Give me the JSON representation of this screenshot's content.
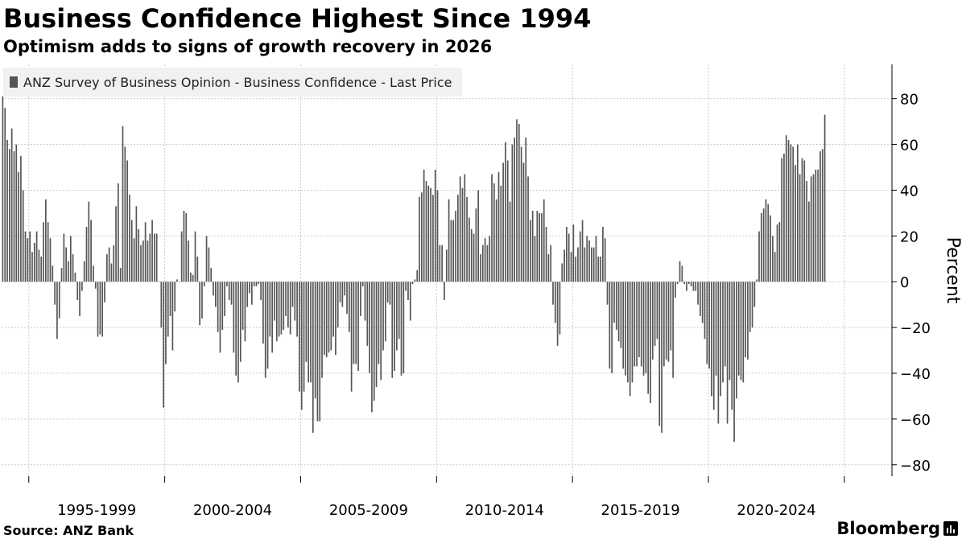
{
  "title": "Business Confidence Highest Since 1994",
  "subtitle": "Optimism adds to signs of growth recovery in 2026",
  "source": "Source: ANZ Bank",
  "brand": "Bloomberg",
  "colors": {
    "bar": "#555555",
    "grid": "#cccccc",
    "axis": "#000000",
    "legend_bg": "#f1f1f1"
  },
  "chart_data": {
    "type": "bar",
    "title": "Business Confidence Highest Since 1994",
    "series": [
      {
        "name": "ANZ Survey of Business Opinion - Business Confidence - Last Price",
        "x_start": 1994.0,
        "x_step": 0.0833,
        "values": [
          81,
          76,
          62,
          58,
          67,
          57,
          60,
          48,
          55,
          40,
          22,
          19,
          22,
          13,
          17,
          22,
          14,
          11,
          26,
          36,
          26,
          19,
          7,
          -10,
          -25,
          -16,
          6,
          21,
          15,
          9,
          20,
          12,
          4,
          -8,
          -15,
          -4,
          9,
          24,
          35,
          27,
          7,
          -3,
          -24,
          -23,
          -24,
          -9,
          12,
          15,
          8,
          16,
          33,
          43,
          6,
          68,
          59,
          53,
          38,
          27,
          19,
          33,
          23,
          16,
          18,
          26,
          18,
          21,
          27,
          21,
          21,
          0,
          -20,
          -55,
          -36,
          -24,
          -15,
          -30,
          -13,
          1,
          0,
          22,
          31,
          30,
          18,
          4,
          3,
          22,
          11,
          -19,
          -16,
          -2,
          20,
          15,
          6,
          -6,
          -11,
          -22,
          -31,
          -21,
          -15,
          -2,
          -8,
          -10,
          -31,
          -41,
          -44,
          -35,
          -21,
          -26,
          -11,
          -5,
          -10,
          -2,
          -2,
          -1,
          -8,
          -27,
          -42,
          -38,
          -24,
          -31,
          -17,
          -26,
          -24,
          -23,
          -21,
          -15,
          -20,
          -23,
          -11,
          -17,
          -24,
          -48,
          -56,
          -48,
          -35,
          -44,
          -44,
          -66,
          -51,
          -61,
          -61,
          -42,
          -32,
          -33,
          -31,
          -30,
          -24,
          -32,
          -20,
          -9,
          -11,
          -6,
          -14,
          -22,
          -48,
          -36,
          -36,
          -39,
          -15,
          -2,
          -17,
          -28,
          -40,
          -57,
          -52,
          -46,
          -36,
          -43,
          -30,
          -26,
          -9,
          -10,
          -42,
          -39,
          -30,
          -25,
          -41,
          -40,
          -4,
          -8,
          -17,
          -1,
          1,
          5,
          37,
          39,
          49,
          44,
          42,
          41,
          38,
          49,
          40,
          16,
          16,
          -8,
          14,
          36,
          27,
          27,
          31,
          38,
          46,
          41,
          47,
          37,
          28,
          23,
          21,
          32,
          40,
          12,
          16,
          19,
          16,
          20,
          47,
          43,
          36,
          48,
          42,
          52,
          61,
          53,
          35,
          60,
          63,
          71,
          69,
          59,
          52,
          63,
          46,
          27,
          31,
          20,
          31,
          30,
          30,
          36,
          24,
          12,
          16,
          -10,
          -18,
          -28,
          -23,
          8,
          14,
          24,
          21,
          13,
          25,
          11,
          15,
          22,
          27,
          15,
          20,
          18,
          15,
          15,
          20,
          11,
          11,
          24,
          19,
          -10,
          -38,
          -40,
          -18,
          -21,
          -26,
          -29,
          -38,
          -41,
          -44,
          -50,
          -44,
          -37,
          -37,
          -33,
          -37,
          -41,
          -40,
          -49,
          -53,
          -34,
          -28,
          -25,
          -63,
          -66,
          -37,
          -34,
          -35,
          -30,
          -42,
          -7,
          -1,
          9,
          7,
          -1,
          -4,
          -1,
          -2,
          -4,
          -4,
          -10,
          -15,
          -18,
          -25,
          -36,
          -38,
          -50,
          -56,
          -41,
          -62,
          -50,
          -44,
          -37,
          -62,
          -43,
          -56,
          -70,
          -51,
          -41,
          -43,
          -44,
          -33,
          -34,
          -22,
          -20,
          -11,
          1,
          22,
          30,
          32,
          36,
          34,
          29,
          20,
          13,
          25,
          26,
          54,
          56,
          64,
          62,
          60,
          59,
          51,
          60,
          47,
          54,
          53,
          44,
          35,
          46,
          47,
          49,
          49,
          57,
          58,
          73
        ]
      }
    ],
    "xlim": [
      1994.0,
      2026.75
    ],
    "ylim": [
      -85,
      95
    ],
    "yticks": [
      80,
      60,
      40,
      20,
      0,
      -20,
      -40,
      -60,
      -80
    ],
    "xdividers": [
      1995,
      2000,
      2005,
      2010,
      2015,
      2020,
      2025
    ],
    "xticks": [
      {
        "center": 1997.5,
        "label": "1995-1999"
      },
      {
        "center": 2002.5,
        "label": "2000-2004"
      },
      {
        "center": 2007.5,
        "label": "2005-2009"
      },
      {
        "center": 2012.5,
        "label": "2010-2014"
      },
      {
        "center": 2017.5,
        "label": "2015-2019"
      },
      {
        "center": 2022.5,
        "label": "2020-2024"
      }
    ],
    "ylabel": "Percent",
    "xlabel": "",
    "legend": "top-left",
    "grid": true
  }
}
